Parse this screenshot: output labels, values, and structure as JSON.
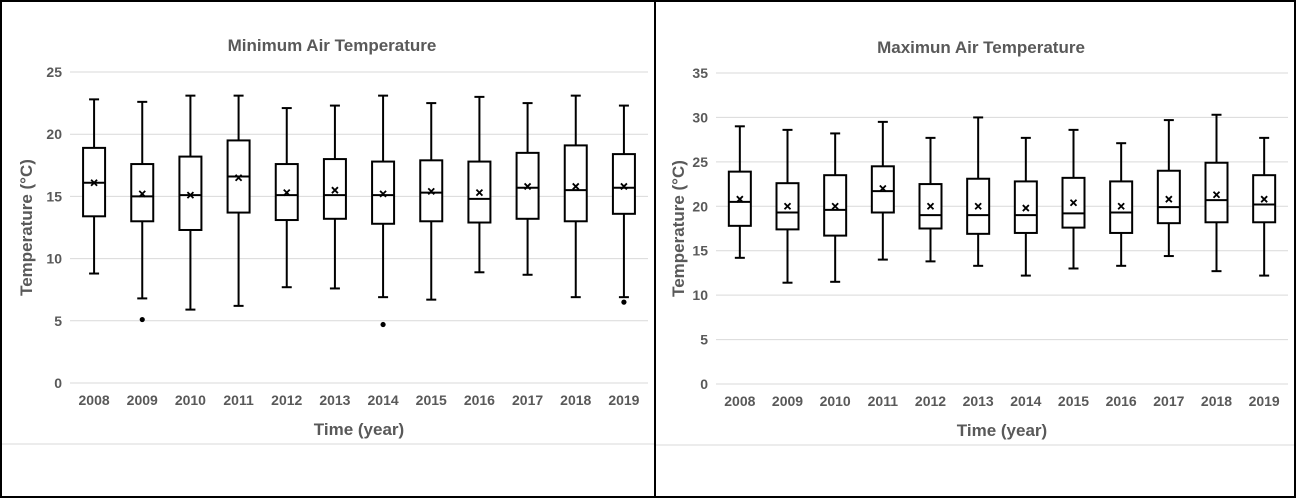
{
  "chart_data": [
    {
      "type": "box",
      "title": "Minimum Air Temperature",
      "xlabel": "Time (year)",
      "ylabel": "Temperature (°C)",
      "ylim": [
        0,
        25
      ],
      "yticks": [
        0,
        5,
        10,
        15,
        20,
        25
      ],
      "grid": true,
      "categories": [
        "2008",
        "2009",
        "2010",
        "2011",
        "2012",
        "2013",
        "2014",
        "2015",
        "2016",
        "2017",
        "2018",
        "2019"
      ],
      "boxes": [
        {
          "min": 8.8,
          "q1": 13.4,
          "median": 16.1,
          "q3": 18.9,
          "max": 22.8,
          "mean": 16.1,
          "outliers": []
        },
        {
          "min": 6.8,
          "q1": 13.0,
          "median": 15.0,
          "q3": 17.6,
          "max": 22.6,
          "mean": 15.2,
          "outliers": [
            5.1
          ]
        },
        {
          "min": 5.9,
          "q1": 12.3,
          "median": 15.1,
          "q3": 18.2,
          "max": 23.1,
          "mean": 15.1,
          "outliers": []
        },
        {
          "min": 6.2,
          "q1": 13.7,
          "median": 16.6,
          "q3": 19.5,
          "max": 23.1,
          "mean": 16.5,
          "outliers": []
        },
        {
          "min": 7.7,
          "q1": 13.1,
          "median": 15.1,
          "q3": 17.6,
          "max": 22.1,
          "mean": 15.3,
          "outliers": []
        },
        {
          "min": 7.6,
          "q1": 13.2,
          "median": 15.1,
          "q3": 18.0,
          "max": 22.3,
          "mean": 15.5,
          "outliers": []
        },
        {
          "min": 6.9,
          "q1": 12.8,
          "median": 15.1,
          "q3": 17.8,
          "max": 23.1,
          "mean": 15.2,
          "outliers": [
            4.7
          ]
        },
        {
          "min": 6.7,
          "q1": 13.0,
          "median": 15.3,
          "q3": 17.9,
          "max": 22.5,
          "mean": 15.4,
          "outliers": []
        },
        {
          "min": 8.9,
          "q1": 12.9,
          "median": 14.8,
          "q3": 17.8,
          "max": 23.0,
          "mean": 15.3,
          "outliers": []
        },
        {
          "min": 8.7,
          "q1": 13.2,
          "median": 15.7,
          "q3": 18.5,
          "max": 22.5,
          "mean": 15.8,
          "outliers": []
        },
        {
          "min": 6.9,
          "q1": 13.0,
          "median": 15.5,
          "q3": 19.1,
          "max": 23.1,
          "mean": 15.8,
          "outliers": []
        },
        {
          "min": 6.9,
          "q1": 13.6,
          "median": 15.7,
          "q3": 18.4,
          "max": 22.3,
          "mean": 15.8,
          "outliers": [
            6.5
          ]
        }
      ]
    },
    {
      "type": "box",
      "title": "Maximun Air Temperature",
      "xlabel": "Time (year)",
      "ylabel": "Temperature (°C)",
      "ylim": [
        0,
        35
      ],
      "yticks": [
        0,
        5,
        10,
        15,
        20,
        25,
        30,
        35
      ],
      "grid": true,
      "categories": [
        "2008",
        "2009",
        "2010",
        "2011",
        "2012",
        "2013",
        "2014",
        "2015",
        "2016",
        "2017",
        "2018",
        "2019"
      ],
      "boxes": [
        {
          "min": 14.2,
          "q1": 17.8,
          "median": 20.5,
          "q3": 23.9,
          "max": 29.0,
          "mean": 20.8,
          "outliers": []
        },
        {
          "min": 11.4,
          "q1": 17.4,
          "median": 19.3,
          "q3": 22.6,
          "max": 28.6,
          "mean": 20.0,
          "outliers": []
        },
        {
          "min": 11.5,
          "q1": 16.7,
          "median": 19.6,
          "q3": 23.5,
          "max": 28.2,
          "mean": 20.0,
          "outliers": []
        },
        {
          "min": 14.0,
          "q1": 19.3,
          "median": 21.7,
          "q3": 24.5,
          "max": 29.5,
          "mean": 22.0,
          "outliers": []
        },
        {
          "min": 13.8,
          "q1": 17.5,
          "median": 19.0,
          "q3": 22.5,
          "max": 27.7,
          "mean": 20.0,
          "outliers": []
        },
        {
          "min": 13.3,
          "q1": 16.9,
          "median": 19.0,
          "q3": 23.1,
          "max": 30.0,
          "mean": 20.0,
          "outliers": []
        },
        {
          "min": 12.2,
          "q1": 17.0,
          "median": 19.0,
          "q3": 22.8,
          "max": 27.7,
          "mean": 19.8,
          "outliers": []
        },
        {
          "min": 13.0,
          "q1": 17.6,
          "median": 19.2,
          "q3": 23.2,
          "max": 28.6,
          "mean": 20.4,
          "outliers": []
        },
        {
          "min": 13.3,
          "q1": 17.0,
          "median": 19.3,
          "q3": 22.8,
          "max": 27.1,
          "mean": 20.0,
          "outliers": []
        },
        {
          "min": 14.4,
          "q1": 18.1,
          "median": 19.9,
          "q3": 24.0,
          "max": 29.7,
          "mean": 20.8,
          "outliers": []
        },
        {
          "min": 12.7,
          "q1": 18.2,
          "median": 20.7,
          "q3": 24.9,
          "max": 30.3,
          "mean": 21.3,
          "outliers": []
        },
        {
          "min": 12.2,
          "q1": 18.2,
          "median": 20.2,
          "q3": 23.5,
          "max": 27.7,
          "mean": 20.8,
          "outliers": []
        }
      ]
    }
  ]
}
